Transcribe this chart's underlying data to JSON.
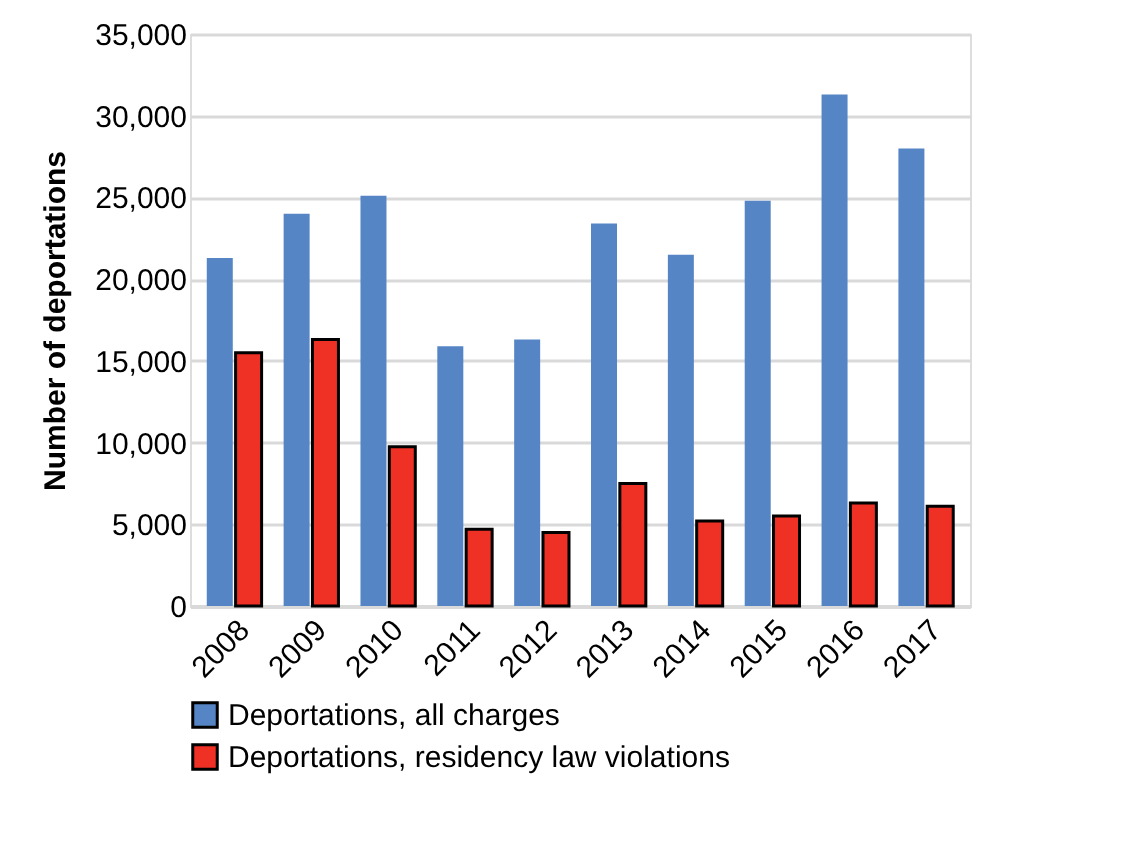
{
  "chart_data": {
    "type": "bar",
    "ylabel": "Number of deportations",
    "categories": [
      "2008",
      "2009",
      "2010",
      "2011",
      "2012",
      "2013",
      "2014",
      "2015",
      "2016",
      "2017"
    ],
    "series": [
      {
        "name": "Deportations, all charges",
        "color": "#5585c5",
        "values": [
          21300,
          24000,
          25100,
          15900,
          16300,
          23400,
          21500,
          24800,
          31300,
          28000
        ]
      },
      {
        "name": "Deportations, residency law violations",
        "color": "#ee3124",
        "values": [
          15500,
          16300,
          9750,
          4700,
          4500,
          7500,
          5200,
          5500,
          6300,
          6100
        ]
      }
    ],
    "ylim": [
      0,
      35000
    ],
    "yticks": [
      {
        "value": 0,
        "label": "0"
      },
      {
        "value": 5000,
        "label": "5,000"
      },
      {
        "value": 10000,
        "label": "10,000"
      },
      {
        "value": 15000,
        "label": "15,000"
      },
      {
        "value": 20000,
        "label": "20,000"
      },
      {
        "value": 25000,
        "label": "25,000"
      },
      {
        "value": 30000,
        "label": "30,000"
      },
      {
        "value": 35000,
        "label": "35,000"
      }
    ],
    "grid": "y",
    "legend": "bottom"
  }
}
